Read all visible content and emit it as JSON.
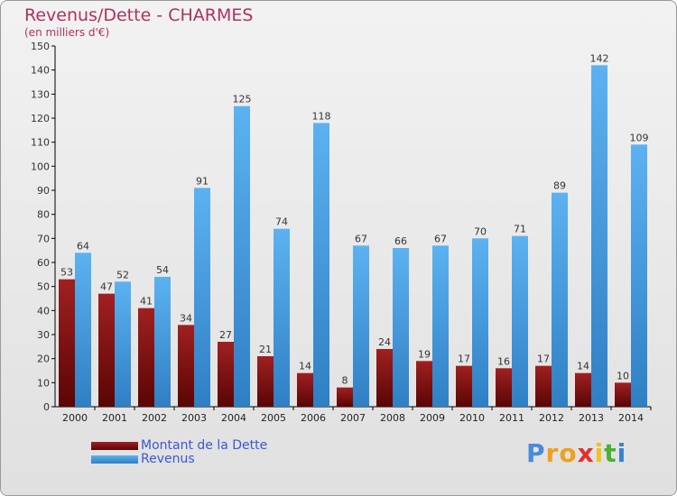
{
  "chart_data": {
    "type": "bar",
    "title": "Revenus/Dette - CHARMES",
    "subtitle": "(en milliers d'€)",
    "categories": [
      "2000",
      "2001",
      "2002",
      "2003",
      "2004",
      "2005",
      "2006",
      "2007",
      "2008",
      "2009",
      "2010",
      "2011",
      "2012",
      "2013",
      "2014"
    ],
    "series": [
      {
        "name": "Montant de la Dette",
        "color": "#7a1010",
        "values": [
          53,
          47,
          41,
          34,
          27,
          21,
          14,
          8,
          24,
          19,
          17,
          16,
          17,
          14,
          10
        ]
      },
      {
        "name": "Revenus",
        "color": "#4aa3e6",
        "values": [
          64,
          52,
          54,
          91,
          125,
          74,
          118,
          67,
          66,
          67,
          70,
          71,
          89,
          142,
          109
        ]
      }
    ],
    "ylim": [
      0,
      150
    ],
    "yticks": [
      0,
      10,
      20,
      30,
      40,
      50,
      60,
      70,
      80,
      90,
      100,
      110,
      120,
      130,
      140,
      150
    ],
    "grid": false,
    "legend_position": "bottom-left"
  },
  "branding": {
    "letters": [
      "P",
      "r",
      "o",
      "x",
      "i",
      "t",
      "i"
    ],
    "colors": [
      "#4a8ad8",
      "#f0a020",
      "#f0a020",
      "#e03030",
      "#f0c020",
      "#4ab030",
      "#3a80d0"
    ]
  }
}
